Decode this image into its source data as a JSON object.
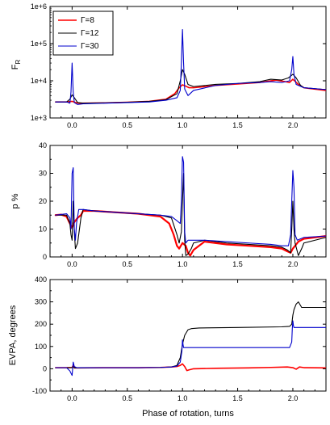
{
  "chart_data": [
    {
      "type": "line",
      "ylabel": "F",
      "ylabel_sub": "R",
      "yscale": "log",
      "xlim": [
        -0.2,
        2.3
      ],
      "ylim": [
        1000,
        1000000
      ],
      "xticks": [
        0.0,
        0.5,
        1.0,
        1.5,
        2.0
      ],
      "xtick_labels": [
        "0.0",
        "0.5",
        "1.0",
        "1.5",
        "2.0"
      ],
      "yticks": [
        1000,
        10000,
        100000,
        1000000
      ],
      "ytick_labels": [
        "1e+3",
        "1e+4",
        "1e+5",
        "1e+6"
      ],
      "legend": {
        "position": "top-left"
      },
      "series": [
        {
          "name": "Γ=8",
          "color": "#ff0000",
          "width": 1.6,
          "x": [
            -0.15,
            -0.05,
            0.0,
            0.03,
            0.06,
            0.1,
            0.3,
            0.5,
            0.7,
            0.85,
            0.93,
            0.97,
            1.0,
            1.03,
            1.06,
            1.1,
            1.3,
            1.5,
            1.7,
            1.85,
            1.93,
            1.97,
            2.0,
            2.05,
            2.1,
            2.3
          ],
          "y": [
            2700,
            2700,
            2800,
            2600,
            2500,
            2500,
            2550,
            2650,
            2800,
            3200,
            4500,
            6500,
            7800,
            7200,
            6500,
            6500,
            7500,
            8200,
            9000,
            10500,
            9500,
            9000,
            11000,
            8000,
            6500,
            5500
          ]
        },
        {
          "name": "Γ=12",
          "color": "#000000",
          "width": 1.1,
          "x": [
            -0.15,
            -0.05,
            -0.02,
            0.0,
            0.02,
            0.05,
            0.1,
            0.3,
            0.5,
            0.7,
            0.85,
            0.95,
            0.98,
            1.0,
            1.02,
            1.05,
            1.1,
            1.3,
            1.5,
            1.7,
            1.8,
            1.9,
            1.96,
            2.0,
            2.03,
            2.07,
            2.1,
            2.3
          ],
          "y": [
            2700,
            2700,
            3200,
            4200,
            3500,
            2600,
            2500,
            2550,
            2650,
            2800,
            3100,
            4500,
            10000,
            20000,
            15000,
            8000,
            7000,
            8000,
            8500,
            9500,
            11000,
            10500,
            12000,
            15000,
            12000,
            7500,
            6500,
            5800
          ]
        },
        {
          "name": "Γ=30",
          "color": "#0000cc",
          "width": 1.1,
          "x": [
            -0.15,
            -0.05,
            -0.02,
            -0.01,
            0.0,
            0.01,
            0.02,
            0.05,
            0.1,
            0.3,
            0.5,
            0.7,
            0.85,
            0.95,
            0.98,
            0.99,
            1.0,
            1.01,
            1.02,
            1.05,
            1.1,
            1.3,
            1.5,
            1.7,
            1.8,
            1.9,
            1.97,
            1.99,
            2.0,
            2.01,
            2.03,
            2.1,
            2.3
          ],
          "y": [
            2700,
            2700,
            2500,
            5000,
            30000,
            5000,
            2600,
            2300,
            2400,
            2500,
            2600,
            2700,
            3000,
            3500,
            5500,
            30000,
            240000,
            30000,
            6000,
            4000,
            5500,
            7500,
            8500,
            9000,
            9500,
            9000,
            10000,
            20000,
            45000,
            15000,
            8000,
            6500,
            5800
          ]
        }
      ]
    },
    {
      "type": "line",
      "ylabel": "p %",
      "xlim": [
        -0.2,
        2.3
      ],
      "ylim": [
        0,
        40
      ],
      "xticks": [
        0.0,
        0.5,
        1.0,
        1.5,
        2.0
      ],
      "xtick_labels": [
        "0.0",
        "0.5",
        "1.0",
        "1.5",
        "2.0"
      ],
      "yticks": [
        0,
        10,
        20,
        30,
        40
      ],
      "ytick_labels": [
        "0",
        "10",
        "20",
        "30",
        "40"
      ],
      "series": [
        {
          "name": "Γ=8",
          "color": "#ff0000",
          "width": 2.2,
          "x": [
            -0.15,
            -0.1,
            -0.05,
            -0.02,
            0.0,
            0.02,
            0.05,
            0.08,
            0.1,
            0.2,
            0.4,
            0.6,
            0.8,
            0.88,
            0.92,
            0.95,
            0.97,
            1.0,
            1.03,
            1.05,
            1.07,
            1.1,
            1.2,
            1.4,
            1.6,
            1.8,
            1.9,
            1.95,
            1.98,
            2.0,
            2.05,
            2.1,
            2.3
          ],
          "y": [
            15.0,
            15.2,
            14.5,
            12.0,
            10.5,
            12.5,
            14.0,
            15.0,
            16.5,
            16.5,
            16.0,
            15.5,
            14.5,
            12.0,
            8.0,
            4.0,
            3.0,
            5.0,
            4.0,
            1.5,
            0.5,
            2.5,
            5.5,
            4.5,
            4.0,
            3.5,
            3.0,
            2.0,
            1.5,
            3.0,
            5.5,
            6.5,
            7.5
          ]
        },
        {
          "name": "Γ=12",
          "color": "#000000",
          "width": 1.1,
          "x": [
            -0.15,
            -0.05,
            -0.02,
            -0.01,
            0.0,
            0.01,
            0.02,
            0.03,
            0.05,
            0.08,
            0.1,
            0.2,
            0.4,
            0.6,
            0.8,
            0.9,
            0.95,
            0.97,
            0.99,
            1.0,
            1.01,
            1.02,
            1.03,
            1.05,
            1.08,
            1.1,
            1.2,
            1.4,
            1.6,
            1.8,
            1.9,
            1.95,
            1.98,
            1.99,
            2.0,
            2.01,
            2.02,
            2.05,
            2.08,
            2.1,
            2.3
          ],
          "y": [
            15.0,
            15.0,
            12.0,
            8.0,
            6.0,
            20.0,
            9.0,
            3.0,
            5.0,
            14.0,
            17.0,
            16.5,
            16.0,
            15.5,
            15.0,
            14.0,
            8.0,
            5.0,
            9.0,
            20.0,
            30.0,
            6.0,
            0.5,
            1.0,
            3.0,
            5.0,
            6.0,
            5.0,
            4.5,
            4.0,
            3.5,
            2.5,
            1.5,
            10.0,
            20.0,
            10.0,
            5.0,
            0.5,
            3.0,
            5.0,
            7.0
          ]
        },
        {
          "name": "Γ=30",
          "color": "#0000cc",
          "width": 1.1,
          "x": [
            -0.15,
            -0.05,
            -0.02,
            -0.01,
            0.0,
            0.01,
            0.02,
            0.03,
            0.04,
            0.06,
            0.1,
            0.2,
            0.4,
            0.6,
            0.8,
            0.9,
            0.95,
            0.98,
            0.99,
            1.0,
            1.01,
            1.02,
            1.03,
            1.05,
            1.1,
            1.2,
            1.4,
            1.6,
            1.8,
            1.9,
            1.96,
            1.98,
            1.99,
            2.0,
            2.01,
            2.02,
            2.04,
            2.1,
            2.3
          ],
          "y": [
            15.0,
            15.5,
            14.0,
            10.0,
            30.0,
            32.0,
            10.0,
            6.0,
            12.0,
            17.0,
            17.0,
            16.5,
            16.0,
            15.5,
            15.0,
            14.5,
            13.0,
            12.0,
            20.0,
            36.0,
            34.0,
            9.0,
            5.0,
            6.0,
            6.0,
            6.0,
            5.5,
            5.0,
            4.5,
            4.0,
            4.0,
            8.0,
            20.0,
            31.0,
            25.0,
            8.0,
            6.0,
            7.0,
            7.5
          ]
        }
      ]
    },
    {
      "type": "line",
      "xlabel": "Phase of rotation, turns",
      "ylabel": "EVPA, degrees",
      "xlim": [
        -0.2,
        2.3
      ],
      "ylim": [
        -100,
        400
      ],
      "xticks": [
        0.0,
        0.5,
        1.0,
        1.5,
        2.0
      ],
      "xtick_labels": [
        "0.0",
        "0.5",
        "1.0",
        "1.5",
        "2.0"
      ],
      "yticks": [
        -100,
        0,
        100,
        200,
        300,
        400
      ],
      "ytick_labels": [
        "-100",
        "0",
        "100",
        "200",
        "300",
        "400"
      ],
      "series": [
        {
          "name": "Γ=8",
          "color": "#ff0000",
          "width": 1.6,
          "x": [
            -0.15,
            -0.05,
            0.0,
            0.01,
            0.02,
            0.05,
            0.3,
            0.6,
            0.8,
            0.9,
            0.95,
            0.98,
            1.0,
            1.02,
            1.04,
            1.06,
            1.1,
            1.3,
            1.6,
            1.8,
            1.95,
            2.0,
            2.03,
            2.06,
            2.1,
            2.3
          ],
          "y": [
            5,
            5,
            6,
            15,
            4,
            4,
            5,
            5,
            6,
            8,
            10,
            15,
            22,
            10,
            -8,
            -5,
            0,
            2,
            4,
            6,
            8,
            5,
            -2,
            8,
            5,
            4
          ]
        },
        {
          "name": "Γ=12",
          "color": "#000000",
          "width": 1.1,
          "x": [
            -0.15,
            -0.05,
            0.0,
            0.01,
            0.02,
            0.05,
            0.3,
            0.6,
            0.8,
            0.9,
            0.95,
            0.98,
            1.0,
            1.02,
            1.05,
            1.08,
            1.15,
            1.5,
            1.9,
            1.97,
            1.99,
            2.0,
            2.01,
            2.03,
            2.05,
            2.08,
            2.2,
            2.3
          ],
          "y": [
            5,
            5,
            5,
            10,
            4,
            4,
            5,
            5,
            6,
            8,
            15,
            50,
            110,
            150,
            175,
            180,
            183,
            185,
            188,
            190,
            200,
            240,
            265,
            290,
            300,
            275,
            275,
            275
          ]
        },
        {
          "name": "Γ=30",
          "color": "#0000cc",
          "width": 1.1,
          "x": [
            -0.15,
            -0.05,
            -0.02,
            0.0,
            0.01,
            0.02,
            0.04,
            0.1,
            0.3,
            0.6,
            0.8,
            0.9,
            0.95,
            0.98,
            0.995,
            1.0,
            1.005,
            1.01,
            1.02,
            1.05,
            1.1,
            1.5,
            1.9,
            1.97,
            1.99,
            1.995,
            2.0,
            2.005,
            2.01,
            2.02,
            2.05,
            2.1,
            2.3
          ],
          "y": [
            5,
            5,
            -10,
            -30,
            30,
            10,
            5,
            5,
            5,
            5,
            6,
            8,
            12,
            30,
            80,
            130,
            110,
            95,
            95,
            95,
            95,
            95,
            95,
            95,
            120,
            180,
            215,
            195,
            185,
            185,
            185,
            185,
            185
          ]
        }
      ]
    }
  ]
}
